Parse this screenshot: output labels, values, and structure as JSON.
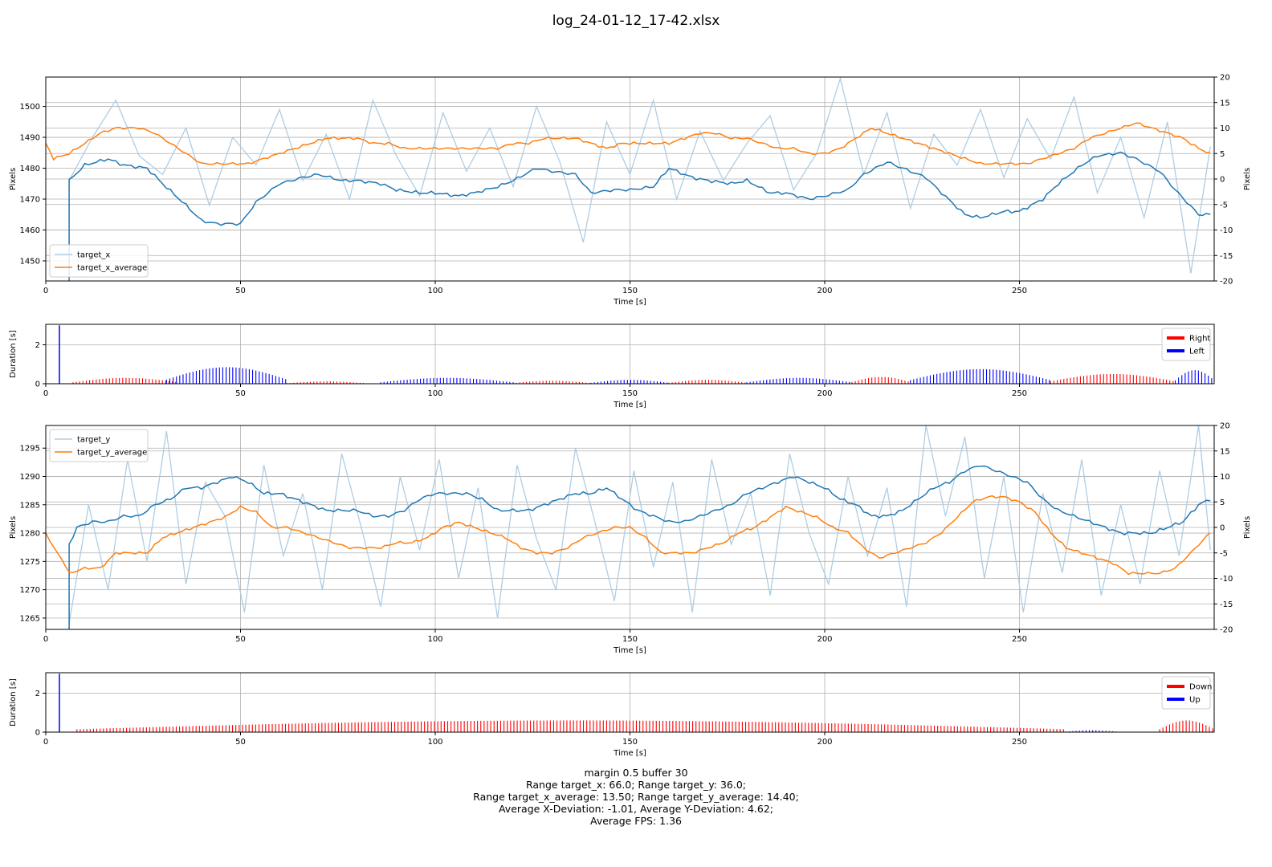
{
  "title": "log_24-01-12_17-42.xlsx",
  "footer": {
    "line1": "margin 0.5 buffer 30",
    "line2": "Range target_x: 66.0; Range target_y: 36.0;",
    "line3": "Range target_x_average: 13.50; Range target_y_average: 14.40;",
    "line4": "Average X-Deviation: -1.01, Average Y-Deviation: 4.62;",
    "line5": "Average FPS: 1.36"
  },
  "colors": {
    "raw": "#aecde3",
    "average_left": "#1f77b4",
    "average_right": "#ff7f0e",
    "right_or_down": "#ff0000",
    "left_or_up": "#0000ff",
    "grid": "#b0b0b0"
  },
  "chart_data": [
    {
      "type": "line",
      "xlabel": "Time [s]",
      "ylabel": "Pixels",
      "ylabel_right": "Pixels",
      "xlim": [
        0,
        300
      ],
      "ylim": [
        1443.5,
        1509.5
      ],
      "ylim_right": [
        -20,
        20
      ],
      "xticks": [
        0,
        50,
        100,
        150,
        200,
        250
      ],
      "yticks": [
        1450,
        1460,
        1470,
        1480,
        1490,
        1500
      ],
      "yticks_right": [
        -20,
        -15,
        -10,
        -5,
        0,
        5,
        10,
        15,
        20
      ],
      "grid": true,
      "legend": "lower-left",
      "series": [
        {
          "name": "target_x",
          "axis": "left",
          "x": [
            6,
            12,
            18,
            24,
            30,
            36,
            42,
            48,
            54,
            60,
            66,
            72,
            78,
            84,
            90,
            96,
            102,
            108,
            114,
            120,
            126,
            132,
            138,
            144,
            150,
            156,
            162,
            168,
            174,
            180,
            186,
            192,
            198,
            204,
            210,
            216,
            222,
            228,
            234,
            240,
            246,
            252,
            258,
            264,
            270,
            276,
            282,
            288,
            294,
            299
          ],
          "y": [
            1476,
            1490,
            1502,
            1484,
            1478,
            1493,
            1468,
            1490,
            1481,
            1499,
            1476,
            1491,
            1470,
            1502,
            1484,
            1471,
            1498,
            1479,
            1493,
            1474,
            1500,
            1482,
            1456,
            1495,
            1478,
            1502,
            1470,
            1492,
            1476,
            1488,
            1497,
            1473,
            1485,
            1509,
            1478,
            1498,
            1467,
            1491,
            1481,
            1499,
            1477,
            1496,
            1483,
            1503,
            1472,
            1490,
            1464,
            1495,
            1446,
            1487
          ]
        },
        {
          "name": "",
          "axis": "left",
          "x": [
            6,
            10,
            16,
            20,
            26,
            30,
            36,
            40,
            44,
            50,
            54,
            60,
            66,
            70,
            76,
            80,
            86,
            90,
            96,
            100,
            106,
            110,
            116,
            120,
            126,
            130,
            136,
            140,
            146,
            150,
            156,
            160,
            166,
            170,
            176,
            180,
            186,
            190,
            196,
            200,
            206,
            210,
            216,
            220,
            226,
            230,
            236,
            240,
            246,
            250,
            256,
            260,
            266,
            270,
            276,
            280,
            286,
            290,
            296,
            299
          ],
          "y": [
            1476,
            1481,
            1483,
            1481,
            1480,
            1475,
            1468,
            1463,
            1462,
            1462,
            1469,
            1475,
            1477,
            1478,
            1476,
            1476,
            1475,
            1473,
            1472,
            1472,
            1471,
            1472,
            1474,
            1476,
            1480,
            1479,
            1478,
            1472,
            1473,
            1473,
            1474,
            1480,
            1477,
            1476,
            1475,
            1476,
            1472,
            1472,
            1470,
            1471,
            1473,
            1478,
            1482,
            1480,
            1477,
            1472,
            1465,
            1464,
            1466,
            1466,
            1470,
            1475,
            1481,
            1484,
            1485,
            1483,
            1479,
            1473,
            1465,
            1465
          ]
        },
        {
          "name": "target_x_average",
          "axis": "right",
          "x": [
            0,
            2,
            6,
            10,
            14,
            18,
            24,
            28,
            32,
            36,
            40,
            44,
            48,
            52,
            56,
            60,
            64,
            68,
            72,
            76,
            80,
            84,
            88,
            92,
            96,
            100,
            104,
            108,
            112,
            116,
            120,
            124,
            128,
            132,
            136,
            140,
            144,
            148,
            152,
            156,
            160,
            164,
            168,
            172,
            176,
            180,
            184,
            188,
            192,
            196,
            200,
            204,
            208,
            212,
            216,
            220,
            224,
            228,
            232,
            236,
            240,
            244,
            248,
            252,
            256,
            260,
            264,
            268,
            272,
            276,
            280,
            284,
            288,
            292,
            296,
            299
          ],
          "y": [
            7,
            4,
            5,
            7,
            9,
            10,
            10,
            9,
            7,
            5,
            3,
            3,
            3,
            3,
            4,
            5,
            6,
            7,
            8,
            8,
            8,
            7,
            7,
            6,
            6,
            6,
            6,
            6,
            6,
            6,
            7,
            7,
            8,
            8,
            8,
            7,
            6,
            7,
            7,
            7,
            7,
            8,
            9,
            9,
            8,
            8,
            7,
            6,
            6,
            5,
            5,
            6,
            8,
            10,
            9,
            8,
            7,
            6,
            5,
            4,
            3,
            3,
            3,
            3,
            4,
            5,
            6,
            8,
            9,
            10,
            11,
            10,
            9,
            8,
            6,
            5
          ]
        }
      ]
    },
    {
      "type": "bar",
      "xlabel": "Time [s]",
      "ylabel": "Duration [s]",
      "xlim": [
        0,
        300
      ],
      "ylim": [
        0,
        3.05
      ],
      "xticks": [
        0,
        50,
        100,
        150,
        200,
        250
      ],
      "yticks": [
        0,
        2
      ],
      "grid": true,
      "legend": "top-right",
      "series": [
        {
          "name": "Right",
          "color": "right_or_down",
          "segments": [
            [
              7,
              34,
              0.3
            ],
            [
              62,
              82,
              0.12
            ],
            [
              120,
              140,
              0.15
            ],
            [
              160,
              180,
              0.2
            ],
            [
              207,
              222,
              0.35
            ],
            [
              258,
              290,
              0.5
            ]
          ]
        },
        {
          "name": "Left",
          "color": "left_or_up",
          "spikes": [
            [
              3.5,
              3.0
            ]
          ],
          "segments": [
            [
              31,
              62,
              0.85
            ],
            [
              86,
              120,
              0.3
            ],
            [
              140,
              160,
              0.2
            ],
            [
              180,
              207,
              0.3
            ],
            [
              222,
              258,
              0.75
            ],
            [
              290,
              300,
              0.7
            ]
          ]
        }
      ]
    },
    {
      "type": "line",
      "xlabel": "Time [s]",
      "ylabel": "Pixels",
      "ylabel_right": "Pixels",
      "xlim": [
        0,
        300
      ],
      "ylim": [
        1263,
        1299
      ],
      "ylim_right": [
        -20,
        20
      ],
      "xticks": [
        0,
        50,
        100,
        150,
        200,
        250
      ],
      "yticks": [
        1265,
        1270,
        1275,
        1280,
        1285,
        1290,
        1295
      ],
      "yticks_right": [
        -20,
        -15,
        -10,
        -5,
        0,
        5,
        10,
        15,
        20
      ],
      "grid": true,
      "legend": "top-left",
      "series": [
        {
          "name": "target_y",
          "axis": "left",
          "x": [
            6,
            11,
            16,
            21,
            26,
            31,
            36,
            41,
            46,
            51,
            56,
            61,
            66,
            71,
            76,
            81,
            86,
            91,
            96,
            101,
            106,
            111,
            116,
            121,
            126,
            131,
            136,
            141,
            146,
            151,
            156,
            161,
            166,
            171,
            176,
            181,
            186,
            191,
            196,
            201,
            206,
            211,
            216,
            221,
            226,
            231,
            236,
            241,
            246,
            251,
            256,
            261,
            266,
            271,
            276,
            281,
            286,
            291,
            296,
            299
          ],
          "y": [
            1264,
            1285,
            1270,
            1293,
            1275,
            1298,
            1271,
            1289,
            1283,
            1266,
            1292,
            1276,
            1287,
            1270,
            1294,
            1281,
            1267,
            1290,
            1277,
            1293,
            1272,
            1288,
            1265,
            1292,
            1279,
            1270,
            1295,
            1282,
            1268,
            1291,
            1274,
            1289,
            1266,
            1293,
            1278,
            1287,
            1269,
            1294,
            1280,
            1271,
            1290,
            1276,
            1288,
            1267,
            1299,
            1283,
            1297,
            1272,
            1290,
            1266,
            1287,
            1273,
            1293,
            1269,
            1285,
            1271,
            1291,
            1276,
            1299,
            1277
          ]
        },
        {
          "name": "",
          "axis": "left",
          "x": [
            6,
            8,
            12,
            16,
            20,
            24,
            28,
            32,
            36,
            40,
            44,
            48,
            52,
            56,
            60,
            64,
            68,
            72,
            76,
            80,
            84,
            88,
            92,
            96,
            100,
            104,
            108,
            112,
            116,
            120,
            124,
            128,
            132,
            136,
            140,
            144,
            148,
            152,
            156,
            160,
            164,
            168,
            172,
            176,
            180,
            184,
            188,
            192,
            196,
            200,
            204,
            208,
            212,
            216,
            220,
            224,
            228,
            232,
            236,
            240,
            244,
            248,
            252,
            256,
            260,
            264,
            268,
            272,
            276,
            280,
            284,
            288,
            292,
            296,
            299
          ],
          "y": [
            1278,
            1281,
            1282,
            1282,
            1283,
            1283,
            1285,
            1286,
            1288,
            1288,
            1289,
            1290,
            1289,
            1287,
            1287,
            1286,
            1285,
            1284,
            1284,
            1284,
            1283,
            1283,
            1284,
            1286,
            1287,
            1287,
            1287,
            1286,
            1284,
            1284,
            1284,
            1285,
            1286,
            1287,
            1287,
            1288,
            1286,
            1284,
            1283,
            1282,
            1282,
            1283,
            1284,
            1285,
            1287,
            1288,
            1289,
            1290,
            1289,
            1288,
            1286,
            1285,
            1283,
            1283,
            1284,
            1286,
            1288,
            1289,
            1291,
            1292,
            1291,
            1290,
            1289,
            1286,
            1284,
            1283,
            1282,
            1281,
            1280,
            1280,
            1280,
            1281,
            1282,
            1285,
            1286
          ]
        },
        {
          "name": "target_y_average",
          "axis": "right",
          "x": [
            0,
            2,
            4,
            6,
            10,
            14,
            18,
            22,
            26,
            30,
            34,
            38,
            42,
            46,
            50,
            54,
            58,
            62,
            66,
            70,
            74,
            78,
            82,
            86,
            90,
            94,
            98,
            102,
            106,
            110,
            114,
            118,
            122,
            126,
            130,
            134,
            138,
            142,
            146,
            150,
            154,
            158,
            162,
            166,
            170,
            174,
            178,
            182,
            186,
            190,
            194,
            198,
            202,
            206,
            210,
            214,
            218,
            222,
            226,
            230,
            234,
            238,
            242,
            246,
            250,
            254,
            258,
            262,
            266,
            270,
            274,
            278,
            282,
            286,
            290,
            294,
            299
          ],
          "y": [
            -1,
            -4,
            -6,
            -9,
            -8,
            -8,
            -5,
            -5,
            -5,
            -2,
            -1,
            0,
            1,
            2,
            4,
            3,
            0,
            0,
            -1,
            -2,
            -3,
            -4,
            -4,
            -4,
            -3,
            -3,
            -2,
            0,
            1,
            0,
            -1,
            -2,
            -4,
            -5,
            -5,
            -4,
            -2,
            -1,
            0,
            0,
            -2,
            -5,
            -5,
            -5,
            -4,
            -3,
            -1,
            0,
            2,
            4,
            3,
            2,
            0,
            -1,
            -4,
            -6,
            -5,
            -4,
            -3,
            -1,
            2,
            5,
            6,
            6,
            5,
            3,
            -1,
            -4,
            -5,
            -6,
            -7,
            -9,
            -9,
            -9,
            -8,
            -5,
            -1
          ]
        }
      ]
    },
    {
      "type": "bar",
      "xlabel": "Time [s]",
      "ylabel": "Duration [s]",
      "xlim": [
        0,
        300
      ],
      "ylim": [
        0,
        3.05
      ],
      "xticks": [
        0,
        50,
        100,
        150,
        200,
        250
      ],
      "yticks": [
        0,
        2
      ],
      "grid": true,
      "legend": "top-right",
      "series": [
        {
          "name": "Down",
          "color": "right_or_down",
          "segments": [
            [
              8,
              262,
              0.6
            ],
            [
              286,
              300,
              0.6
            ]
          ]
        },
        {
          "name": "Up",
          "color": "left_or_up",
          "spikes": [
            [
              3.5,
              3.0
            ]
          ],
          "segments": [
            [
              262,
              275,
              0.1
            ]
          ]
        }
      ]
    }
  ]
}
